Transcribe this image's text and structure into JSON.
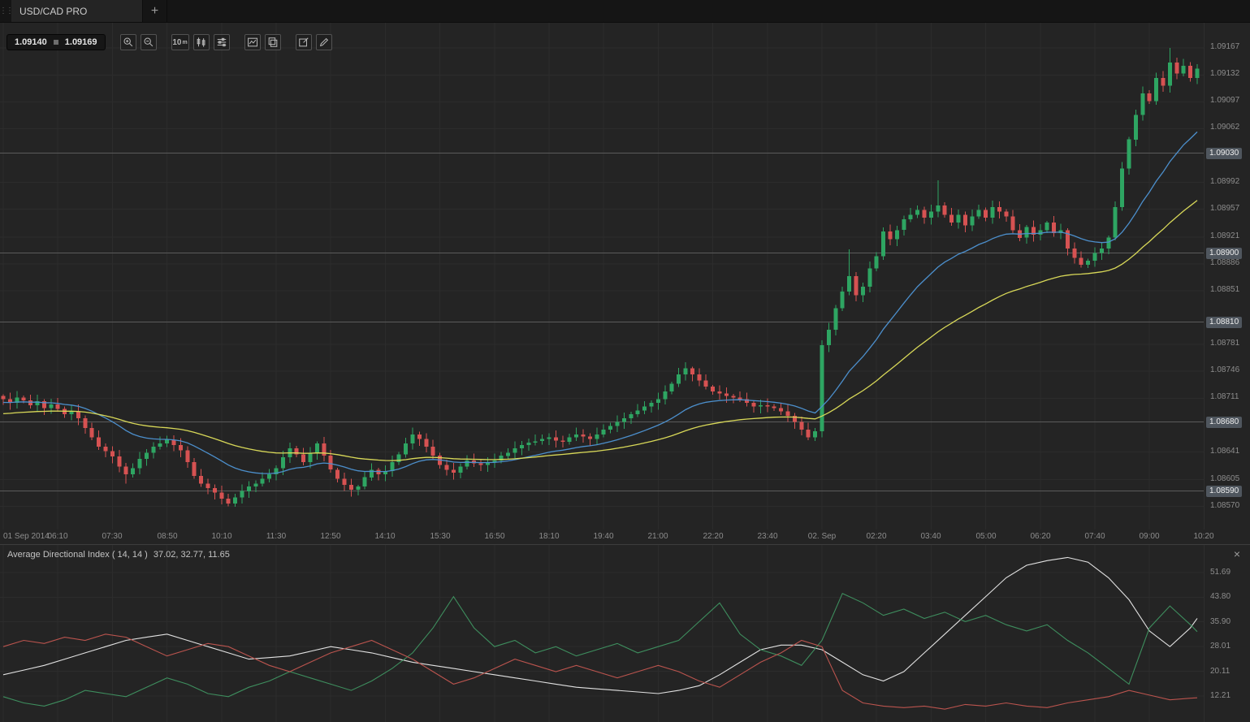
{
  "window": {
    "tab_title": "USD/CAD PRO",
    "new_tab_glyph": "+",
    "grip_glyph": "⋮⋮"
  },
  "toolbar": {
    "bid": "1.09140",
    "ask": "1.09169",
    "timeframe_value": "10",
    "timeframe_unit": "m",
    "buttons": [
      "zoom-in",
      "zoom-out",
      "timeframe",
      "chart-type",
      "indicators",
      "chart-mode",
      "duplicate",
      "annotate",
      "draw"
    ]
  },
  "colors": {
    "up": "#2ea562",
    "down": "#d65252",
    "ma_fast": "#4c8fcc",
    "ma_slow": "#d8d858",
    "grid": "#2c2c2c",
    "level_line": "#5b5b5b",
    "adx": "#e2e2e2",
    "plus_di": "#3e8e5e",
    "minus_di": "#bb544e"
  },
  "price_axis": {
    "labels": [
      {
        "text": "1.09167",
        "price": 1.09167,
        "badge": false
      },
      {
        "text": "1.09132",
        "price": 1.09132,
        "badge": false
      },
      {
        "text": "1.09097",
        "price": 1.09097,
        "badge": false
      },
      {
        "text": "1.09062",
        "price": 1.09062,
        "badge": false
      },
      {
        "text": "1.09030",
        "price": 1.0903,
        "badge": true
      },
      {
        "text": "1.08992",
        "price": 1.08992,
        "badge": false
      },
      {
        "text": "1.08957",
        "price": 1.08957,
        "badge": false
      },
      {
        "text": "1.08921",
        "price": 1.08921,
        "badge": false
      },
      {
        "text": "1.08900",
        "price": 1.089,
        "badge": true
      },
      {
        "text": "1.08886",
        "price": 1.08886,
        "badge": false
      },
      {
        "text": "1.08851",
        "price": 1.08851,
        "badge": false
      },
      {
        "text": "1.08810",
        "price": 1.0881,
        "badge": true
      },
      {
        "text": "1.08781",
        "price": 1.08781,
        "badge": false
      },
      {
        "text": "1.08746",
        "price": 1.08746,
        "badge": false
      },
      {
        "text": "1.08711",
        "price": 1.08711,
        "badge": false
      },
      {
        "text": "1.08680",
        "price": 1.0868,
        "badge": true
      },
      {
        "text": "1.08641",
        "price": 1.08641,
        "badge": false
      },
      {
        "text": "1.08605",
        "price": 1.08605,
        "badge": false
      },
      {
        "text": "1.08590",
        "price": 1.0859,
        "badge": true
      },
      {
        "text": "1.08570",
        "price": 1.0857,
        "badge": false
      }
    ]
  },
  "time_axis": {
    "labels": [
      {
        "i": 0,
        "t": "01 Sep 2014"
      },
      {
        "i": 8,
        "t": "06:10"
      },
      {
        "i": 16,
        "t": "07:30"
      },
      {
        "i": 24,
        "t": "08:50"
      },
      {
        "i": 32,
        "t": "10:10"
      },
      {
        "i": 40,
        "t": "11:30"
      },
      {
        "i": 48,
        "t": "12:50"
      },
      {
        "i": 56,
        "t": "14:10"
      },
      {
        "i": 64,
        "t": "15:30"
      },
      {
        "i": 72,
        "t": "16:50"
      },
      {
        "i": 80,
        "t": "18:10"
      },
      {
        "i": 88,
        "t": "19:40"
      },
      {
        "i": 96,
        "t": "21:00"
      },
      {
        "i": 104,
        "t": "22:20"
      },
      {
        "i": 112,
        "t": "23:40"
      },
      {
        "i": 120,
        "t": "02. Sep"
      },
      {
        "i": 128,
        "t": "02:20"
      },
      {
        "i": 136,
        "t": "03:40"
      },
      {
        "i": 144,
        "t": "05:00"
      },
      {
        "i": 152,
        "t": "06:20"
      },
      {
        "i": 160,
        "t": "07:40"
      },
      {
        "i": 168,
        "t": "09:00"
      },
      {
        "i": 176,
        "t": "10:20"
      }
    ]
  },
  "indicator": {
    "title": "Average Directional Index ( 14, 14 )",
    "values": "37.02, 32.77, 11.65",
    "close_glyph": "×"
  },
  "chart_data": [
    {
      "type": "candlestick",
      "title": "USD/CAD PRO",
      "timeframe": "10m",
      "ylim": [
        1.0854,
        1.092
      ],
      "first_open": 1.08714,
      "closes": [
        1.0871,
        1.08705,
        1.08712,
        1.08708,
        1.08702,
        1.08707,
        1.08698,
        1.08703,
        1.08697,
        1.0869,
        1.08694,
        1.08685,
        1.08672,
        1.0866,
        1.08648,
        1.08642,
        1.08635,
        1.08622,
        1.08612,
        1.0862,
        1.08632,
        1.0864,
        1.08648,
        1.08652,
        1.08657,
        1.0865,
        1.08643,
        1.08628,
        1.0861,
        1.086,
        1.08594,
        1.08588,
        1.0858,
        1.08574,
        1.08582,
        1.0859,
        1.08596,
        1.086,
        1.08606,
        1.08612,
        1.0862,
        1.08634,
        1.08646,
        1.08638,
        1.08628,
        1.0864,
        1.08652,
        1.08636,
        1.08618,
        1.08606,
        1.08598,
        1.08592,
        1.08596,
        1.08608,
        1.08618,
        1.08612,
        1.08616,
        1.08628,
        1.08638,
        1.08652,
        1.08664,
        1.08658,
        1.08648,
        1.08636,
        1.08624,
        1.08618,
        1.08614,
        1.08622,
        1.0863,
        1.08626,
        1.08624,
        1.08628,
        1.0863,
        1.08636,
        1.0864,
        1.08646,
        1.0865,
        1.08653,
        1.08655,
        1.08658,
        1.0866,
        1.08656,
        1.08654,
        1.0866,
        1.08664,
        1.08661,
        1.08658,
        1.08664,
        1.0867,
        1.08675,
        1.0868,
        1.08685,
        1.0869,
        1.08695,
        1.087,
        1.08705,
        1.0871,
        1.0872,
        1.0873,
        1.08742,
        1.0875,
        1.08742,
        1.08734,
        1.08726,
        1.0872,
        1.08717,
        1.08714,
        1.08712,
        1.0871,
        1.08705,
        1.087,
        1.08702,
        1.087,
        1.08698,
        1.08694,
        1.08688,
        1.0868,
        1.0867,
        1.0866,
        1.08668,
        1.0878,
        1.088,
        1.08828,
        1.0885,
        1.0887,
        1.08845,
        1.08856,
        1.0888,
        1.08896,
        1.08928,
        1.08918,
        1.0893,
        1.08944,
        1.0895,
        1.08956,
        1.08946,
        1.08954,
        1.08962,
        1.0895,
        1.0894,
        1.0895,
        1.08936,
        1.08948,
        1.08956,
        1.08946,
        1.0896,
        1.08954,
        1.08948,
        1.0893,
        1.0892,
        1.08934,
        1.08924,
        1.0893,
        1.0894,
        1.08926,
        1.0893,
        1.08906,
        1.08894,
        1.08885,
        1.0889,
        1.089,
        1.08906,
        1.0892,
        1.0896,
        1.0901,
        1.09048,
        1.0908,
        1.09108,
        1.09098,
        1.09128,
        1.09118,
        1.09148,
        1.09134,
        1.09144,
        1.09128,
        1.0914
      ],
      "wick_overrides": {
        "18": {
          "l": 1.086
        },
        "33": {
          "l": 1.0857
        },
        "100": {
          "h": 1.08758
        },
        "124": {
          "h": 1.08905
        },
        "137": {
          "h": 1.08995
        },
        "171": {
          "h": 1.09167
        }
      },
      "overlays": [
        {
          "name": "ma-fast",
          "period": 20,
          "seed": 1.08705,
          "color": "#4c8fcc"
        },
        {
          "name": "ma-slow",
          "period": 50,
          "seed": 1.0869,
          "color": "#d8d858"
        }
      ],
      "levels": [
        1.0903,
        1.089,
        1.0881,
        1.0868,
        1.0859
      ]
    },
    {
      "type": "line",
      "title": "Average Directional Index ( 14, 14 )",
      "current_values": {
        "adx": 37.02,
        "plus_di": 32.77,
        "minus_di": 11.65
      },
      "ylim": [
        3.9,
        60.5
      ],
      "axis_labels": [
        "51.69",
        "43.80",
        "35.90",
        "28.01",
        "20.11",
        "12.21"
      ],
      "sample_step": 3,
      "series": [
        {
          "name": "adx",
          "color": "#e2e2e2",
          "values": [
            19,
            20.5,
            22,
            24,
            26,
            28,
            30,
            31,
            32,
            30,
            28,
            26,
            24,
            24.5,
            25,
            26.5,
            28,
            27,
            26,
            24.5,
            23,
            22,
            21,
            20,
            19,
            18,
            17,
            16,
            15,
            14.5,
            14,
            13.5,
            13,
            14,
            15.5,
            19,
            23,
            27,
            28.5,
            28.5,
            27,
            23,
            19,
            17,
            20,
            26,
            32,
            38,
            44,
            50,
            54,
            55.5,
            56.5,
            55,
            50,
            43,
            33,
            28,
            34,
            37.02
          ]
        },
        {
          "name": "plus-di",
          "color": "#3e8e5e",
          "values": [
            12,
            10,
            9,
            11,
            14,
            13,
            12,
            15,
            18,
            16,
            13,
            12,
            15,
            17,
            20,
            18,
            16,
            14,
            17,
            21,
            26,
            34,
            44,
            34,
            28,
            30,
            26,
            28,
            25,
            27,
            29,
            26,
            28,
            30,
            36,
            42,
            32,
            27,
            25,
            22,
            30,
            45,
            42,
            38,
            40,
            37,
            39,
            36,
            38,
            35,
            33,
            35,
            30,
            26,
            21,
            16,
            34,
            41,
            35,
            32.77
          ]
        },
        {
          "name": "minus-di",
          "color": "#bb544e",
          "values": [
            28,
            30,
            29,
            31,
            30,
            32,
            31,
            28,
            25,
            27,
            29,
            28,
            25,
            22,
            20,
            23,
            26,
            28,
            30,
            27,
            24,
            20,
            16,
            18,
            21,
            24,
            22,
            20,
            22,
            20,
            18,
            20,
            22,
            20,
            17,
            15,
            19,
            23,
            26,
            30,
            28,
            14,
            10,
            9,
            8.5,
            9,
            8,
            9.5,
            9,
            10,
            9,
            8.5,
            10,
            11,
            12,
            14,
            12.5,
            11,
            11.5,
            11.65
          ]
        }
      ]
    }
  ]
}
